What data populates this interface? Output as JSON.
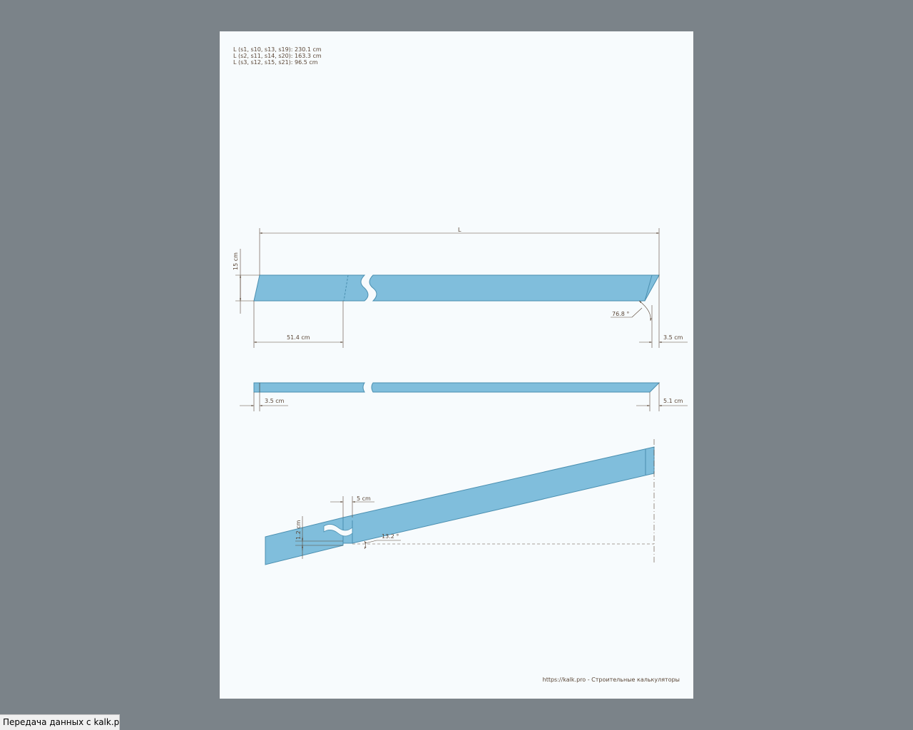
{
  "lengths": [
    "L (s1, s10, s13, s19): 230.1 cm",
    "L (s2, s11, s14, s20): 163.3 cm",
    "L (s3, s12, s15, s21): 96.5 cm"
  ],
  "dimensions": {
    "length_symbol": "L",
    "height": "15 cm",
    "bevel_length": "51.4 cm",
    "bevel_offset": "3.5 cm",
    "angle_end": "76.8 °",
    "top_left_offset": "3.5 cm",
    "top_right_offset": "5.1 cm",
    "notch_width": "5 cm",
    "notch_depth": "1.2 cm",
    "slope_angle": "13.2 °"
  },
  "footer": "https://kalk.pro - Строительные калькуляторы",
  "status": "Передача данных с kalk.pro...",
  "colors": {
    "board_fill": "#80bedc",
    "board_stroke": "#4a8fb0",
    "dim_line": "#5a4636",
    "background": "#7b8389"
  }
}
